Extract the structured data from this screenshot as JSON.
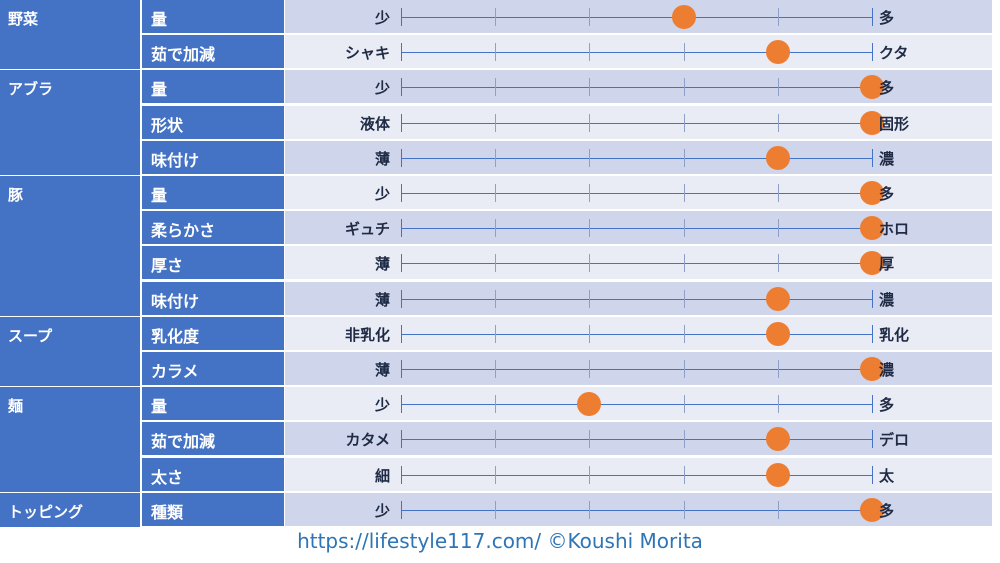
{
  "categories": [
    {
      "label": "野菜",
      "rows": [
        {
          "attr": "量",
          "left": "少",
          "right": "多",
          "value": 3
        },
        {
          "attr": "茹で加減",
          "left": "シャキ",
          "right": "クタ",
          "value": 4
        }
      ]
    },
    {
      "label": "アブラ",
      "rows": [
        {
          "attr": "量",
          "left": "少",
          "right": "多",
          "value": 5
        },
        {
          "attr": "形状",
          "left": "液体",
          "right": "固形",
          "value": 5
        },
        {
          "attr": "味付け",
          "left": "薄",
          "right": "濃",
          "value": 4
        }
      ]
    },
    {
      "label": "豚",
      "rows": [
        {
          "attr": "量",
          "left": "少",
          "right": "多",
          "value": 5
        },
        {
          "attr": "柔らかさ",
          "left": "ギュチ",
          "right": "ホロ",
          "value": 5
        },
        {
          "attr": "厚さ",
          "left": "薄",
          "right": "厚",
          "value": 5
        },
        {
          "attr": "味付け",
          "left": "薄",
          "right": "濃",
          "value": 4
        }
      ]
    },
    {
      "label": "スープ",
      "rows": [
        {
          "attr": "乳化度",
          "left": "非乳化",
          "right": "乳化",
          "value": 4
        },
        {
          "attr": "カラメ",
          "left": "薄",
          "right": "濃",
          "value": 5
        }
      ]
    },
    {
      "label": "麺",
      "rows": [
        {
          "attr": "量",
          "left": "少",
          "right": "多",
          "value": 2
        },
        {
          "attr": "茹で加減",
          "left": "カタメ",
          "right": "デロ",
          "value": 4
        },
        {
          "attr": "太さ",
          "left": "細",
          "right": "太",
          "value": 4
        }
      ]
    },
    {
      "label": "トッピング",
      "rows": [
        {
          "attr": "種類",
          "left": "少",
          "right": "多",
          "value": 5
        }
      ]
    }
  ],
  "scale": {
    "min": 0,
    "max": 5,
    "marker_color": "#ed7d31",
    "header_color": "#4472c4"
  },
  "footer": "https://lifestyle117.com/  ©Koushi Morita"
}
